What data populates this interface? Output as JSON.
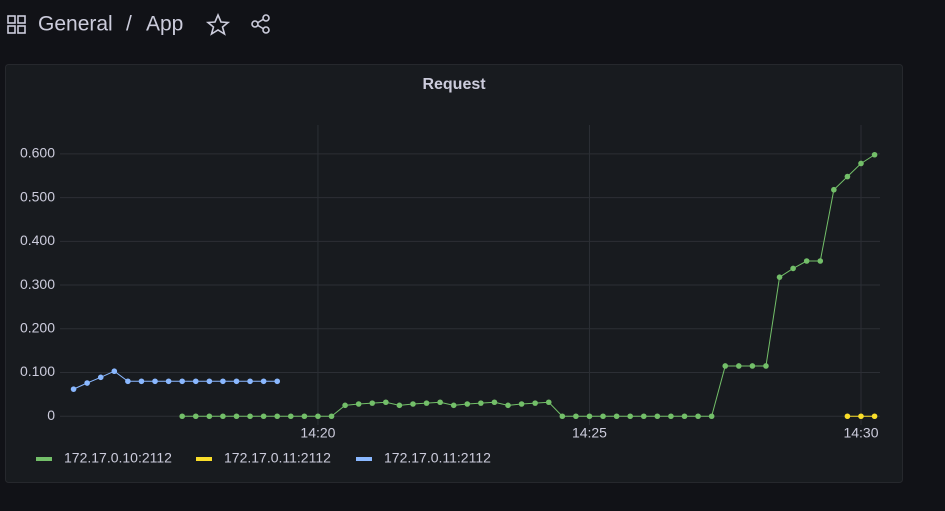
{
  "header": {
    "folder": "General",
    "separator": "/",
    "dashboard": "App"
  },
  "chart_data": {
    "type": "line",
    "title": "Request",
    "xlim": [
      15.25,
      30.35
    ],
    "xticks": [
      {
        "value": 20,
        "label": "14:20"
      },
      {
        "value": 25,
        "label": "14:25"
      },
      {
        "value": 30,
        "label": "14:30"
      }
    ],
    "ylim": [
      -0.02,
      0.666
    ],
    "yticks": [
      0,
      {
        "value": 0.1,
        "label": "0.100"
      },
      {
        "value": 0.2,
        "label": "0.200"
      },
      {
        "value": 0.3,
        "label": "0.300"
      },
      {
        "value": 0.4,
        "label": "0.400"
      },
      {
        "value": 0.5,
        "label": "0.500"
      },
      {
        "value": 0.6,
        "label": "0.600"
      }
    ],
    "grid": true,
    "legend": "bottom",
    "series": [
      {
        "name": "172.17.0.10:2112",
        "color": "#73bf69",
        "x": [
          17.5,
          17.75,
          18,
          18.25,
          18.5,
          18.75,
          19,
          19.25,
          19.5,
          19.75,
          20,
          20.25,
          20.5,
          20.75,
          21,
          21.25,
          21.5,
          21.75,
          22,
          22.25,
          22.5,
          22.75,
          23,
          23.25,
          23.5,
          23.75,
          24,
          24.25,
          24.5,
          24.75,
          25,
          25.25,
          25.5,
          25.75,
          26,
          26.25,
          26.5,
          26.75,
          27,
          27.25,
          27.5,
          27.75,
          28,
          28.25,
          28.5,
          28.75,
          29,
          29.25,
          29.5,
          29.75,
          30,
          30.25
        ],
        "values": [
          0,
          0,
          0,
          0,
          0,
          0,
          0,
          0,
          0,
          0,
          0,
          0,
          0.025,
          0.028,
          0.03,
          0.032,
          0.025,
          0.028,
          0.03,
          0.032,
          0.025,
          0.028,
          0.03,
          0.032,
          0.025,
          0.028,
          0.03,
          0.032,
          0,
          0,
          0,
          0,
          0,
          0,
          0,
          0,
          0,
          0,
          0,
          0,
          0.115,
          0.115,
          0.115,
          0.115,
          0.318,
          0.338,
          0.355,
          0.355,
          0.518,
          0.548,
          0.578,
          0.598
        ]
      },
      {
        "name": "172.17.0.11:2112",
        "color": "#fade2a",
        "x": [
          29.75,
          30,
          30.25
        ],
        "values": [
          0,
          0,
          0
        ]
      },
      {
        "name": "172.17.0.11:2112",
        "color": "#8ab8ff",
        "x": [
          15.5,
          15.75,
          16,
          16.25,
          16.5,
          16.75,
          17,
          17.25,
          17.5,
          17.75,
          18,
          18.25,
          18.5,
          18.75,
          19,
          19.25
        ],
        "values": [
          0.062,
          0.076,
          0.089,
          0.103,
          0.08,
          0.08,
          0.08,
          0.08,
          0.08,
          0.08,
          0.08,
          0.08,
          0.08,
          0.08,
          0.08,
          0.08
        ]
      }
    ]
  }
}
